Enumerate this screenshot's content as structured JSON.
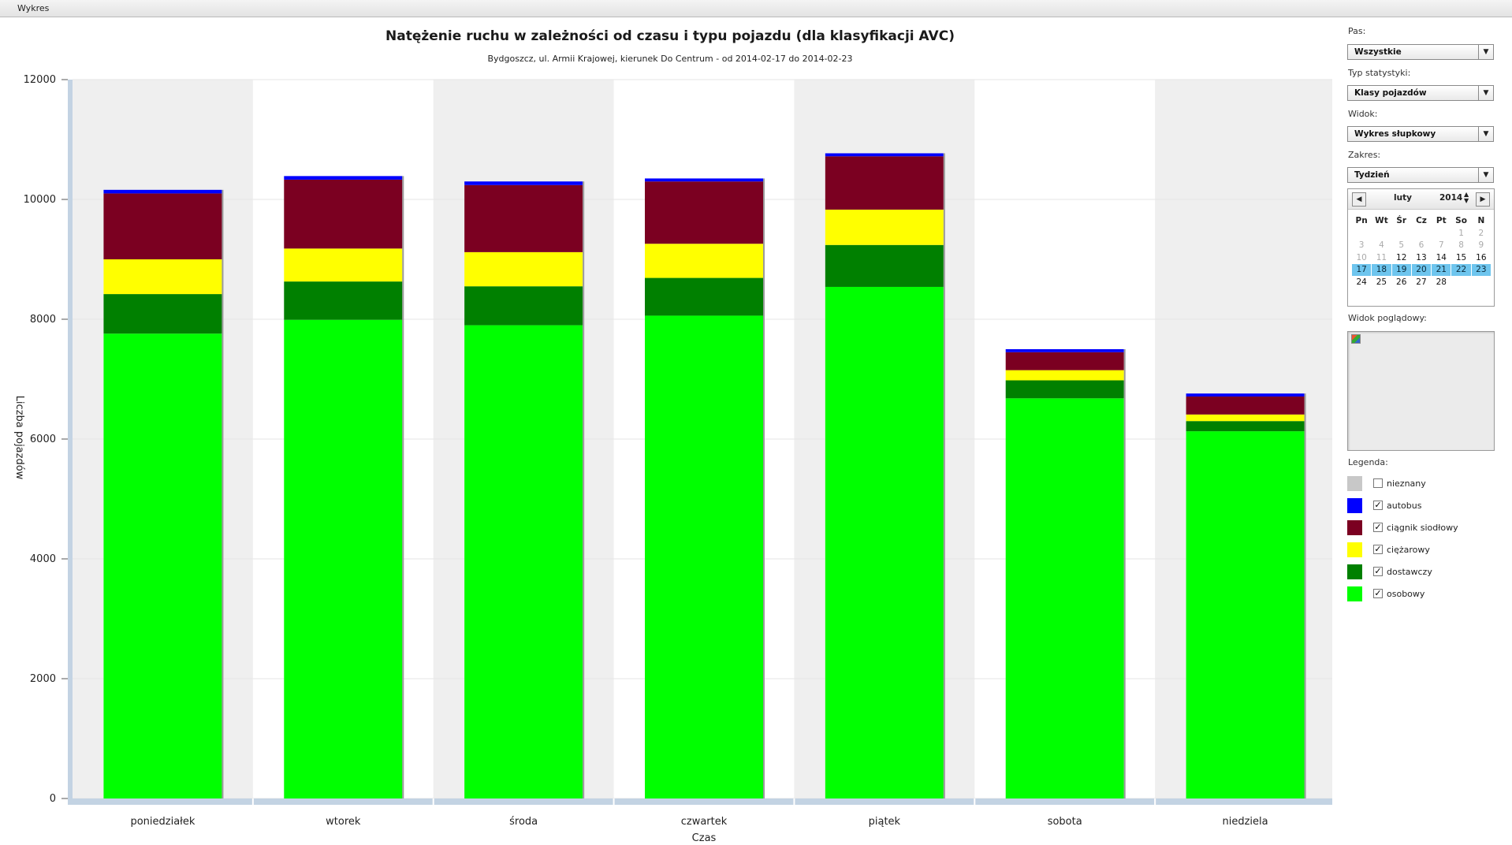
{
  "window": {
    "tab_label": "Wykres"
  },
  "chart_data": {
    "type": "bar",
    "stacked": true,
    "title": "Natężenie ruchu w zależności od czasu i typu pojazdu (dla klasyfikacji AVC)",
    "subtitle": "Bydgoszcz, ul. Armii Krajowej, kierunek Do Centrum - od 2014-02-17 do 2014-02-23",
    "xlabel": "Czas",
    "ylabel": "Liczba pojazdów",
    "ylim": [
      0,
      12000
    ],
    "yticks": [
      0,
      2000,
      4000,
      6000,
      8000,
      10000,
      12000
    ],
    "grid": true,
    "categories": [
      "poniedziałek",
      "wtorek",
      "środa",
      "czwartek",
      "piątek",
      "sobota",
      "niedziela"
    ],
    "series": [
      {
        "name": "osobowy",
        "color": "#00ff00",
        "values": [
          7760,
          7990,
          7900,
          8060,
          8540,
          6680,
          6130
        ]
      },
      {
        "name": "dostawczy",
        "color": "#008000",
        "values": [
          660,
          640,
          650,
          630,
          700,
          300,
          170
        ]
      },
      {
        "name": "ciężarowy",
        "color": "#ffff00",
        "values": [
          580,
          550,
          570,
          570,
          590,
          170,
          110
        ]
      },
      {
        "name": "ciągnik siodłowy",
        "color": "#7b0021",
        "values": [
          1100,
          1150,
          1120,
          1040,
          890,
          300,
          300
        ]
      },
      {
        "name": "autobus",
        "color": "#0000ff",
        "values": [
          60,
          60,
          60,
          50,
          50,
          50,
          50
        ]
      }
    ]
  },
  "panel": {
    "pas_label": "Pas:",
    "pas_value": "Wszystkie",
    "typ_label": "Typ statystyki:",
    "typ_value": "Klasy pojazdów",
    "widok_label": "Widok:",
    "widok_value": "Wykres słupkowy",
    "zakres_label": "Zakres:",
    "zakres_value": "Tydzień",
    "calendar": {
      "month": "luty",
      "year": "2014",
      "day_headers": [
        "Pn",
        "Wt",
        "Śr",
        "Cz",
        "Pt",
        "So",
        "N"
      ],
      "days": [
        "",
        "",
        "",
        "",
        "",
        "1",
        "2",
        "3",
        "4",
        "5",
        "6",
        "7",
        "8",
        "9",
        "10",
        "11",
        "12",
        "13",
        "14",
        "15",
        "16",
        "17",
        "18",
        "19",
        "20",
        "21",
        "22",
        "23",
        "24",
        "25",
        "26",
        "27",
        "28"
      ],
      "muted_days": [
        "1",
        "2",
        "3",
        "4",
        "5",
        "6",
        "7",
        "8",
        "9",
        "10",
        "11"
      ],
      "selected_days": [
        "17",
        "18",
        "19",
        "20",
        "21",
        "22",
        "23"
      ]
    },
    "preview_label": "Widok poglądowy:",
    "legend_label": "Legenda:",
    "legend": [
      {
        "label": "nieznany",
        "color": "#c8c8c8",
        "checked": false
      },
      {
        "label": "autobus",
        "color": "#0000ff",
        "checked": true
      },
      {
        "label": "ciągnik siodłowy",
        "color": "#7b0021",
        "checked": true
      },
      {
        "label": "ciężarowy",
        "color": "#ffff00",
        "checked": true
      },
      {
        "label": "dostawczy",
        "color": "#008000",
        "checked": true
      },
      {
        "label": "osobowy",
        "color": "#00ff00",
        "checked": true
      }
    ]
  }
}
